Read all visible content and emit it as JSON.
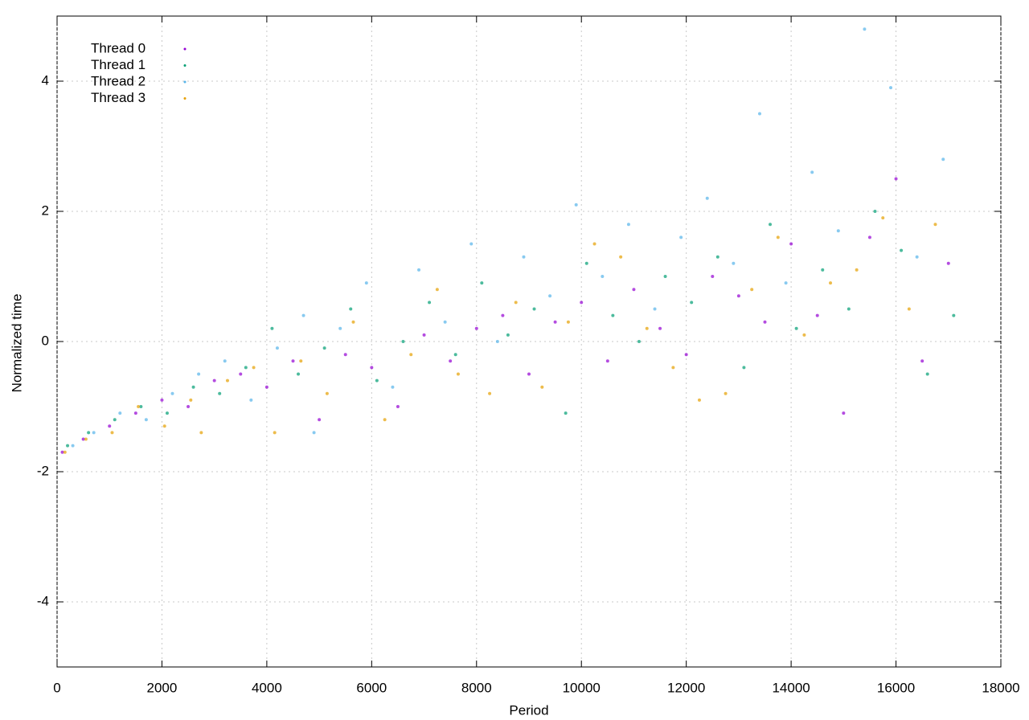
{
  "chart_data": {
    "type": "scatter",
    "xlabel": "Period",
    "ylabel": "Normalized time",
    "xlim": [
      0,
      18000
    ],
    "ylim": [
      -5,
      5
    ],
    "xticks": [
      0,
      2000,
      4000,
      6000,
      8000,
      10000,
      12000,
      14000,
      16000,
      18000
    ],
    "yticks": [
      -4,
      -2,
      0,
      2,
      4
    ],
    "grid": true,
    "legend": "top-left",
    "series": [
      {
        "name": "Thread 0",
        "color": "#9400d3",
        "x": [
          100,
          500,
          1000,
          1500,
          2000,
          2500,
          3000,
          3500,
          4000,
          4500,
          5000,
          5500,
          6000,
          6500,
          7000,
          7500,
          8000,
          8500,
          9000,
          9500,
          10000,
          10500,
          11000,
          11500,
          12000,
          12500,
          13000,
          13500,
          14000,
          14500,
          15000,
          15500,
          16000,
          16500,
          17000
        ],
        "values": [
          -1.7,
          -1.5,
          -1.3,
          -1.1,
          -0.9,
          -1.0,
          -0.6,
          -0.5,
          -0.7,
          -0.3,
          -1.2,
          -0.2,
          -0.4,
          -1.0,
          0.1,
          -0.3,
          0.2,
          0.4,
          -0.5,
          0.3,
          0.6,
          -0.3,
          0.8,
          0.2,
          -0.2,
          1.0,
          0.7,
          0.3,
          1.5,
          0.4,
          -1.1,
          1.6,
          2.5,
          -0.3,
          1.2
        ]
      },
      {
        "name": "Thread 1",
        "color": "#009e73",
        "x": [
          200,
          600,
          1100,
          1600,
          2100,
          2600,
          3100,
          3600,
          4100,
          4600,
          5100,
          5600,
          6100,
          6600,
          7100,
          7600,
          8100,
          8600,
          9100,
          9700,
          10100,
          10600,
          11100,
          11600,
          12100,
          12600,
          13100,
          13600,
          14100,
          14600,
          15100,
          15600,
          16100,
          16600,
          17100
        ],
        "values": [
          -1.6,
          -1.4,
          -1.2,
          -1.0,
          -1.1,
          -0.7,
          -0.8,
          -0.4,
          0.2,
          -0.5,
          -0.1,
          0.5,
          -0.6,
          0.0,
          0.6,
          -0.2,
          0.9,
          0.1,
          0.5,
          -1.1,
          1.2,
          0.4,
          0.0,
          1.0,
          0.6,
          1.3,
          -0.4,
          1.8,
          0.2,
          1.1,
          0.5,
          2.0,
          1.4,
          -0.5,
          0.4
        ]
      },
      {
        "name": "Thread 2",
        "color": "#56b4e9",
        "x": [
          300,
          700,
          1200,
          1700,
          2200,
          2700,
          3200,
          3700,
          4200,
          4700,
          4900,
          5400,
          5900,
          6400,
          6900,
          7400,
          7900,
          8400,
          8900,
          9400,
          9900,
          10400,
          10900,
          11400,
          11900,
          12400,
          12900,
          13400,
          13900,
          14400,
          14900,
          15400,
          15900,
          16400,
          16900
        ],
        "values": [
          -1.6,
          -1.4,
          -1.1,
          -1.2,
          -0.8,
          -0.5,
          -0.3,
          -0.9,
          -0.1,
          0.4,
          -1.4,
          0.2,
          0.9,
          -0.7,
          1.1,
          0.3,
          1.5,
          0.0,
          1.3,
          0.7,
          2.1,
          1.0,
          1.8,
          0.5,
          1.6,
          2.2,
          1.2,
          3.5,
          0.9,
          2.6,
          1.7,
          4.8,
          3.9,
          1.3,
          2.8
        ]
      },
      {
        "name": "Thread 3",
        "color": "#e69f00",
        "x": [
          150,
          550,
          1050,
          1550,
          2050,
          2550,
          2750,
          3250,
          3750,
          4150,
          4650,
          5150,
          5650,
          6250,
          6750,
          7250,
          7650,
          8250,
          8750,
          9250,
          9750,
          10250,
          10750,
          11250,
          11750,
          12250,
          12750,
          13250,
          13750,
          14250,
          14750,
          15250,
          15750,
          16250,
          16750
        ],
        "values": [
          -1.7,
          -1.5,
          -1.4,
          -1.0,
          -1.3,
          -0.9,
          -1.4,
          -0.6,
          -0.4,
          -1.4,
          -0.3,
          -0.8,
          0.3,
          -1.2,
          -0.2,
          0.8,
          -0.5,
          -0.8,
          0.6,
          -0.7,
          0.3,
          1.5,
          1.3,
          0.2,
          -0.4,
          -0.9,
          -0.8,
          0.8,
          1.6,
          0.1,
          0.9,
          1.1,
          1.9,
          0.5,
          1.8
        ]
      }
    ]
  }
}
